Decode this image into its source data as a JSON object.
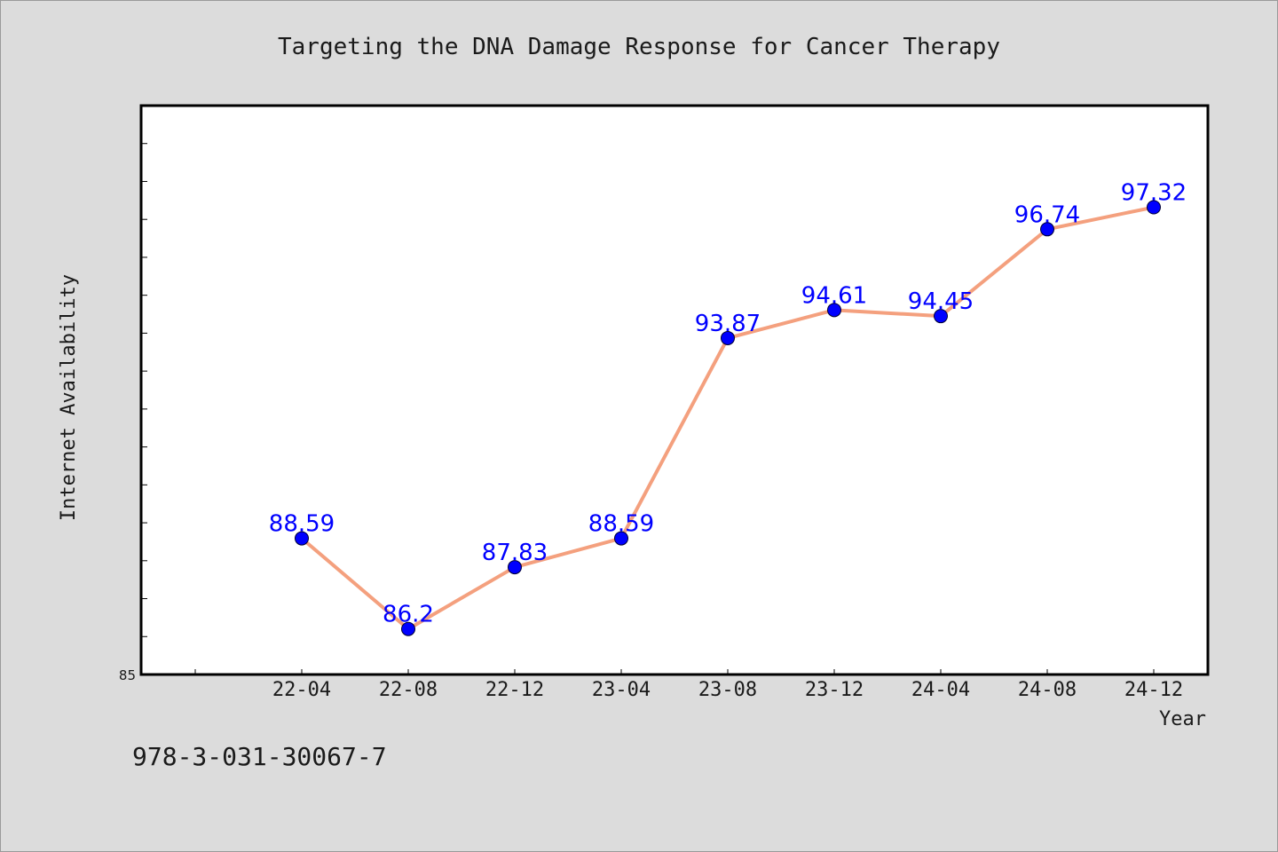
{
  "chart_data": {
    "type": "line",
    "title": "Targeting the DNA Damage Response for Cancer Therapy",
    "xlabel": "Year",
    "ylabel": "Internet Availability",
    "categories": [
      "22-04",
      "22-08",
      "22-12",
      "23-04",
      "23-08",
      "23-12",
      "24-04",
      "24-08",
      "24-12"
    ],
    "series": [
      {
        "values": [
          88.59,
          86.2,
          87.83,
          88.59,
          93.87,
          94.61,
          94.45,
          96.74,
          97.32
        ],
        "labels": [
          "88.59",
          "86.2",
          "87.83",
          "88.59",
          "93.87",
          "94.61",
          "94.45",
          "96.74",
          "97.32"
        ]
      }
    ],
    "ylim": [
      85,
      100
    ],
    "y_tick_label": "85",
    "grid": false,
    "colors": {
      "line": "#f4a07e",
      "marker": "#0000ff",
      "label": "#0000ff"
    }
  },
  "footer": {
    "isbn": "978-3-031-30067-7"
  }
}
